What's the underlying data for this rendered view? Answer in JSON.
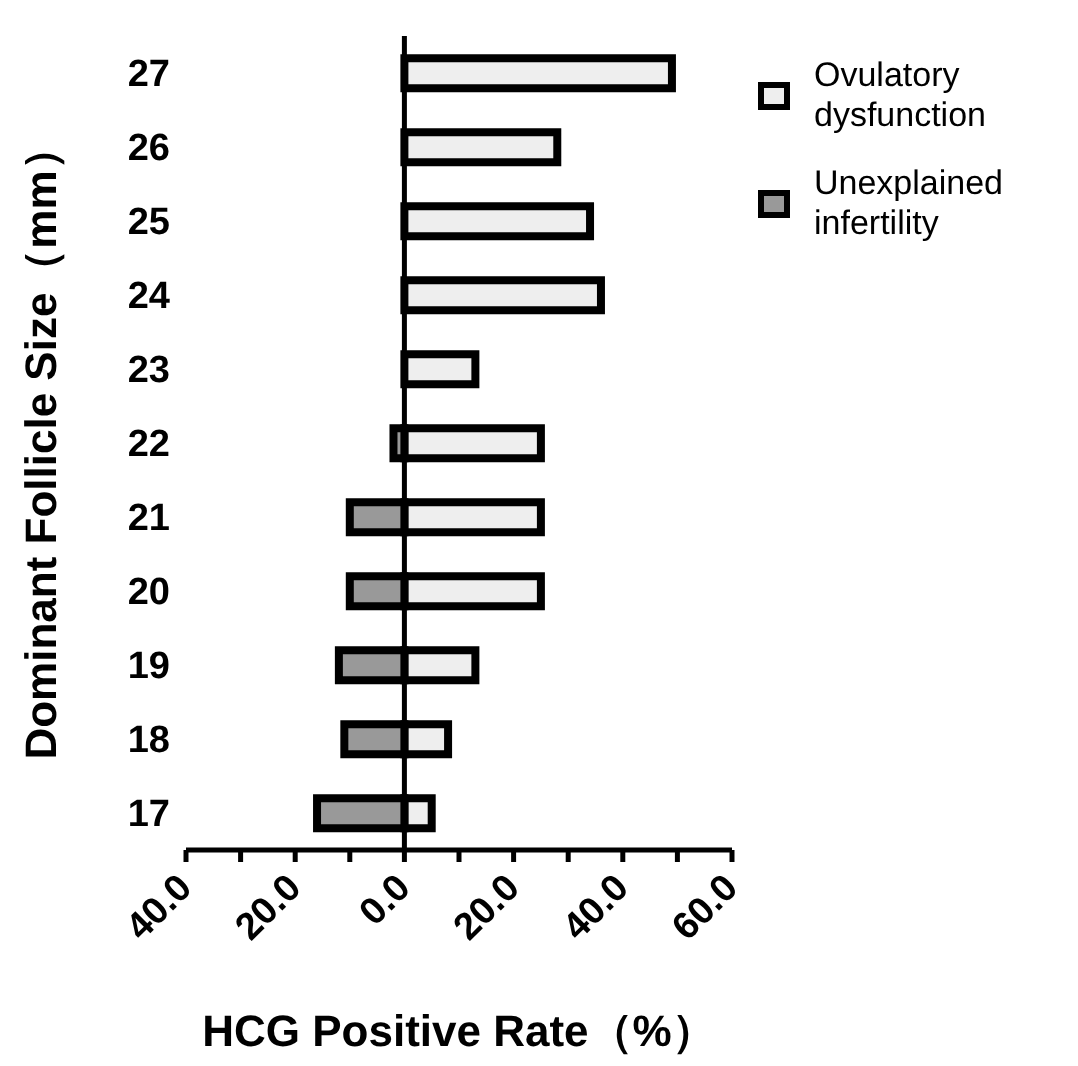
{
  "chart_data": {
    "type": "bar",
    "orientation": "horizontal",
    "stacked": true,
    "xlabel": "HCG Positive Rate（%）",
    "ylabel": "Dominant Follicle Size（mm）",
    "categories": [
      "27",
      "26",
      "25",
      "24",
      "23",
      "22",
      "21",
      "20",
      "19",
      "18",
      "17"
    ],
    "series": [
      {
        "name": "Ovulatory dysfunction",
        "color": "#eeeeee",
        "values": [
          49,
          28,
          34,
          36,
          13,
          25,
          25,
          25,
          13,
          8,
          5
        ]
      },
      {
        "name": "Unexplained infertility",
        "color": "#999999",
        "values": [
          null,
          null,
          null,
          null,
          null,
          -2,
          -10,
          -10,
          -12,
          -11,
          -16
        ]
      }
    ],
    "xlim": [
      -40,
      60
    ],
    "xticks": [
      {
        "value": -40,
        "label": "40.0"
      },
      {
        "value": -30,
        "label": null
      },
      {
        "value": -20,
        "label": "20.0"
      },
      {
        "value": -10,
        "label": null
      },
      {
        "value": 0,
        "label": "0.0"
      },
      {
        "value": 10,
        "label": null
      },
      {
        "value": 20,
        "label": "20.0"
      },
      {
        "value": 30,
        "label": null
      },
      {
        "value": 40,
        "label": "40.0"
      },
      {
        "value": 50,
        "label": null
      },
      {
        "value": 60,
        "label": "60.0"
      }
    ],
    "ref_lines": [
      {
        "axis": "x",
        "value": 0
      }
    ],
    "grid": false,
    "legend": "top right"
  }
}
